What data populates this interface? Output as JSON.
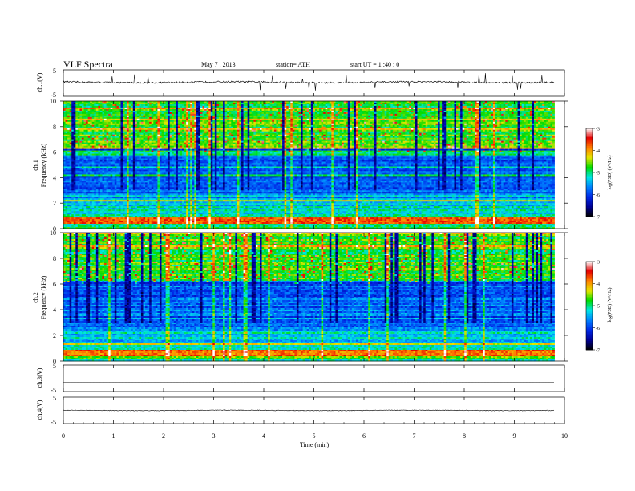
{
  "header": {
    "title": "VLF  Spectra",
    "date": "May 7  , 2013",
    "station": "station= ATH",
    "start": "start  UT  =   1  :40 : 0"
  },
  "chart_data": {
    "type": "heatmap",
    "xlabel": "Time  (min)",
    "xlim": [
      0,
      10
    ],
    "x_ticks": [
      "0",
      "1",
      "2",
      "3",
      "4",
      "5",
      "6",
      "7",
      "8",
      "9",
      "10"
    ],
    "data_end_min": 9.8,
    "panels": [
      {
        "id": "ch1v",
        "ylabel": "ch.1(V)",
        "type": "line",
        "ylim": [
          -5,
          5
        ],
        "y_ticks": [
          "5",
          "-5"
        ],
        "baseline": 0.3,
        "noise": 0.6
      },
      {
        "id": "ch1spec",
        "ylabel_top": "ch.1",
        "ylabel": "Frequency  (kHz)",
        "type": "heatmap",
        "ylim": [
          0,
          10
        ],
        "y_ticks": [
          "0",
          "2",
          "4",
          "6",
          "8",
          "10"
        ],
        "colorbar": {
          "label": "log(PSD) (V²/Hz)",
          "ticks": [
            "-3",
            "-4",
            "-5",
            "-6",
            "-7"
          ],
          "range": [
            -7,
            -3
          ],
          "colors": [
            "#000000",
            "#0000e6",
            "#0080ff",
            "#00e6e6",
            "#00e600",
            "#e6e600",
            "#ff8000",
            "#e60000",
            "#ffffff"
          ]
        }
      },
      {
        "id": "ch2spec",
        "ylabel_top": "ch.2",
        "ylabel": "Frequency  (kHz)",
        "type": "heatmap",
        "ylim": [
          0,
          10
        ],
        "y_ticks": [
          "0",
          "2",
          "4",
          "6",
          "8",
          "10"
        ],
        "colorbar": {
          "label": "log(PSD) (V²/Hz)",
          "ticks": [
            "-3",
            "-4",
            "-5",
            "-6",
            "-7"
          ],
          "range": [
            -7,
            -3
          ]
        }
      },
      {
        "id": "ch3v",
        "ylabel": "ch.3(V)",
        "type": "line",
        "ylim": [
          -5,
          5
        ],
        "y_ticks": [
          "5",
          "-5"
        ],
        "baseline": -1.5,
        "noise": 0.05
      },
      {
        "id": "ch4v",
        "ylabel": "ch.4(V)",
        "type": "line",
        "ylim": [
          -5,
          5
        ],
        "y_ticks": [
          "5",
          "-5"
        ],
        "baseline": 0,
        "noise": 0.25
      }
    ]
  }
}
